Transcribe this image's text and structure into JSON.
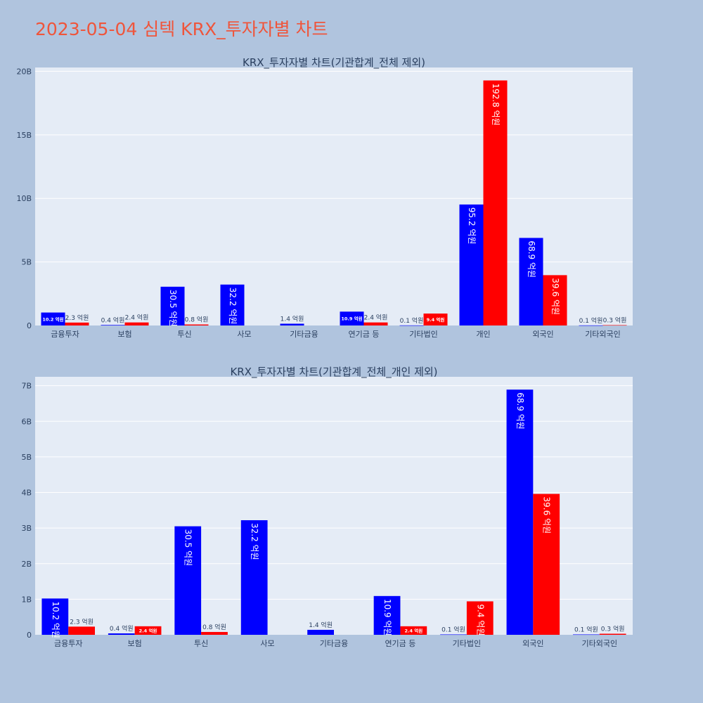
{
  "title": "2023-05-04 심텍 KRX_투자자별 차트",
  "colors": {
    "buy": "#0000ff",
    "sell": "#ff0000",
    "title": "#ef553b",
    "plot_bg": "#e5ecf6",
    "page_bg": "#b0c4de"
  },
  "chart_data": [
    {
      "type": "bar",
      "title": "KRX_투자자별 차트(기관합계_전체 제외)",
      "categories": [
        "금융투자",
        "보험",
        "투신",
        "사모",
        "기타금융",
        "연기금 등",
        "기타법인",
        "개인",
        "외국인",
        "기타외국인"
      ],
      "y_tick_labels": [
        "0",
        "5B",
        "10B",
        "15B",
        "20B"
      ],
      "y_tick_values": [
        0,
        5000000000,
        10000000000,
        15000000000,
        20000000000
      ],
      "ylim": [
        0,
        20300000000
      ],
      "grid": true,
      "series": [
        {
          "color": "#0000ff",
          "values": [
            1020000000,
            40000000,
            3050000000,
            3220000000,
            140000000,
            1090000000,
            10000000,
            9520000000,
            6890000000,
            10000000
          ],
          "labels": [
            "10.2 억원",
            "0.4 억원",
            "30.5 억원",
            "32.2 억원",
            "1.4 억원",
            "10.9 억원",
            "0.1 억원",
            "95.2 억원",
            "68.9 억원",
            "0.1 억원"
          ]
        },
        {
          "color": "#ff0000",
          "values": [
            230000000,
            240000000,
            80000000,
            0,
            0,
            240000000,
            940000000,
            19280000000,
            3960000000,
            30000000
          ],
          "labels": [
            "2.3 억원",
            "2.4 억원",
            "0.8 억원",
            "",
            "",
            "2.4 억원",
            "9.4 억원",
            "192.8 억원",
            "39.6 억원",
            "0.3 억원"
          ]
        }
      ]
    },
    {
      "type": "bar",
      "title": "KRX_투자자별 차트(기관합계_전체_개인 제외)",
      "categories": [
        "금융투자",
        "보험",
        "투신",
        "사모",
        "기타금융",
        "연기금 등",
        "기타법인",
        "외국인",
        "기타외국인"
      ],
      "y_tick_labels": [
        "0",
        "1B",
        "2B",
        "3B",
        "4B",
        "5B",
        "6B",
        "7B"
      ],
      "y_tick_values": [
        0,
        1000000000,
        2000000000,
        3000000000,
        4000000000,
        5000000000,
        6000000000,
        7000000000
      ],
      "ylim": [
        0,
        7250000000
      ],
      "grid": true,
      "series": [
        {
          "color": "#0000ff",
          "values": [
            1020000000,
            40000000,
            3050000000,
            3220000000,
            140000000,
            1090000000,
            10000000,
            6890000000,
            10000000
          ],
          "labels": [
            "10.2 억원",
            "0.4 억원",
            "30.5 억원",
            "32.2 억원",
            "1.4 억원",
            "10.9 억원",
            "0.1 억원",
            "68.9 억원",
            "0.1 억원"
          ]
        },
        {
          "color": "#ff0000",
          "values": [
            230000000,
            240000000,
            80000000,
            0,
            0,
            240000000,
            940000000,
            3960000000,
            30000000
          ],
          "labels": [
            "2.3 억원",
            "2.4 억원",
            "0.8 억원",
            "",
            "",
            "2.4 억원",
            "9.4 억원",
            "39.6 억원",
            "0.3 억원"
          ]
        }
      ]
    }
  ]
}
